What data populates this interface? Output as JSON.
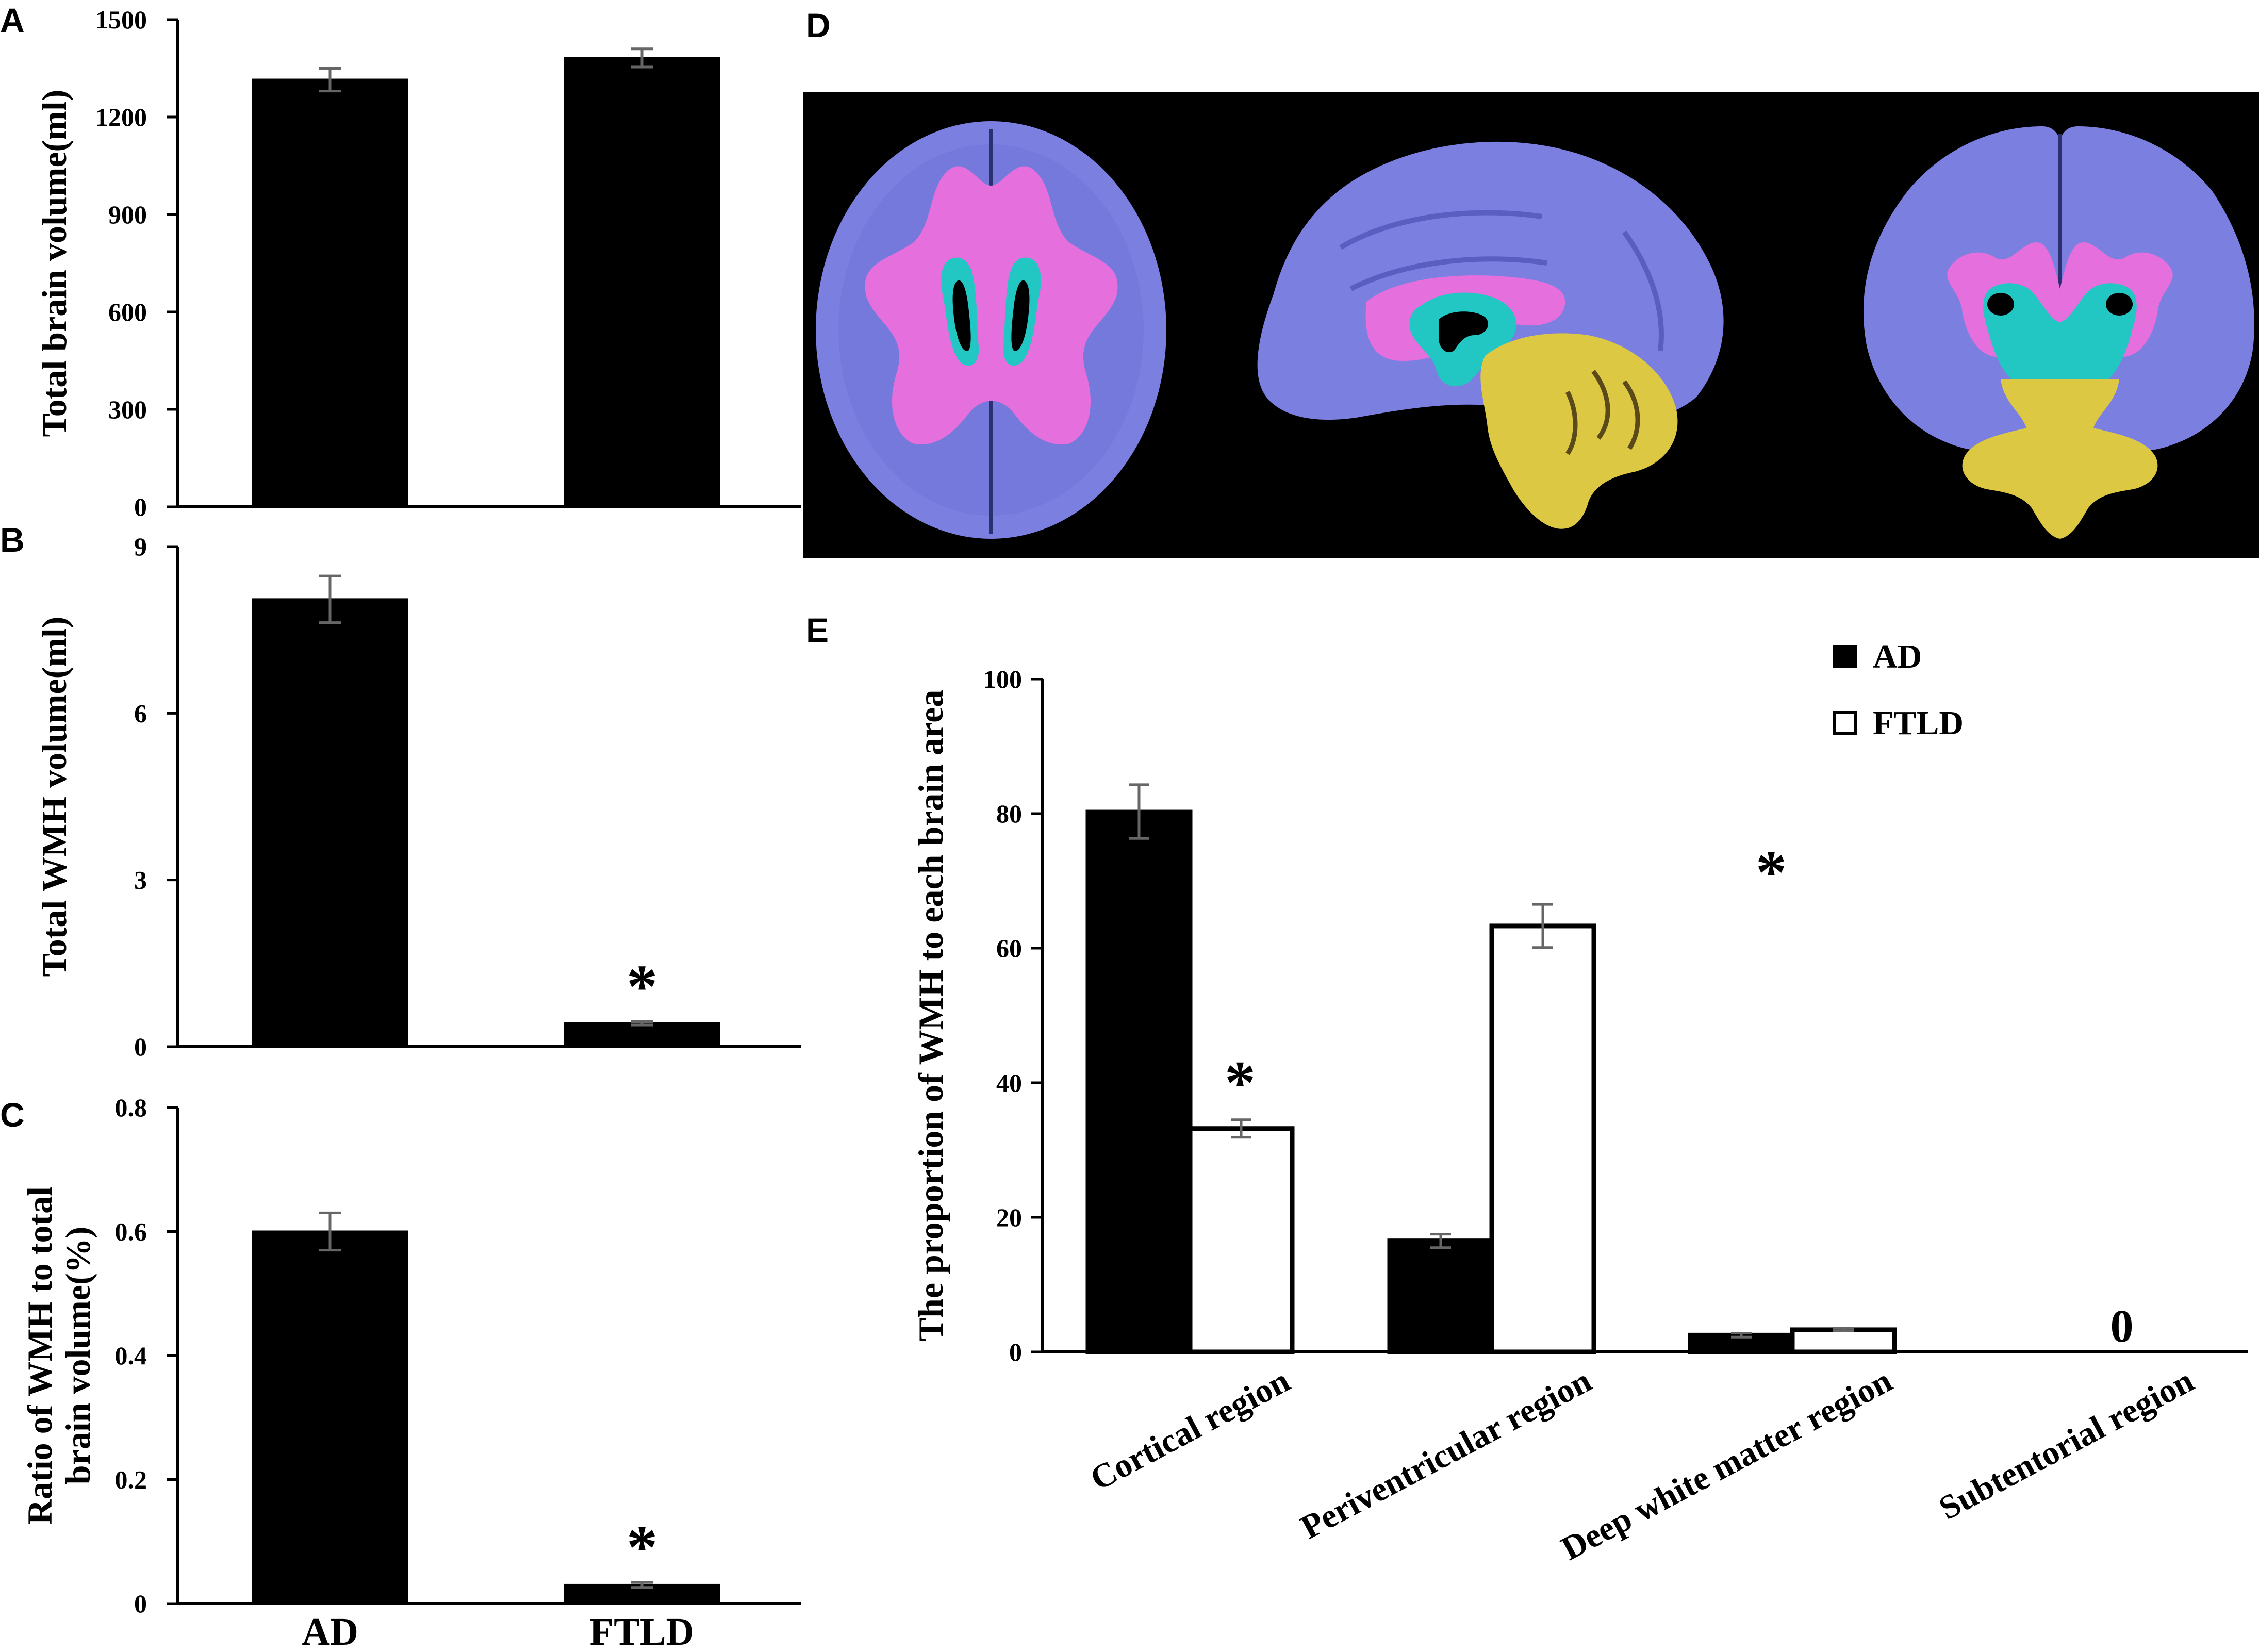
{
  "panel_labels": {
    "a": "A",
    "b": "B",
    "c": "C",
    "d": "D",
    "e": "E"
  },
  "colors": {
    "ad_fill": "#000000",
    "ftld_fill": "#ffffff",
    "error_bar": "#666666",
    "brain_background": "#000000",
    "cortex": "#7b7fe0",
    "white_matter": "#e56fdc",
    "periventricular": "#22c7c4",
    "ventricle": "#000000",
    "cerebellum_brainstem": "#dcc843"
  },
  "chart_data": [
    {
      "id": "A",
      "type": "bar",
      "categories": [
        "AD",
        "FTLD"
      ],
      "values": [
        1315,
        1382
      ],
      "errors": [
        35,
        28
      ],
      "ylabel": "Total brain volume(ml)",
      "ylim": [
        0,
        1500
      ],
      "yticks": [
        "0",
        "300",
        "600",
        "900",
        "1200",
        "1500"
      ],
      "annotations": [],
      "show_category_labels": false
    },
    {
      "id": "B",
      "type": "bar",
      "categories": [
        "AD",
        "FTLD"
      ],
      "values": [
        8.05,
        0.42
      ],
      "errors": [
        0.42,
        0.03
      ],
      "ylabel": "Total  WMH volume(ml)",
      "ylim": [
        0,
        9
      ],
      "yticks": [
        "0",
        "3",
        "6",
        "9"
      ],
      "annotations": [
        {
          "category": "FTLD",
          "text": "*"
        }
      ],
      "show_category_labels": false
    },
    {
      "id": "C",
      "type": "bar",
      "categories": [
        "AD",
        "FTLD"
      ],
      "values": [
        0.6,
        0.03
      ],
      "errors": [
        0.03,
        0.004
      ],
      "ylabel_lines": [
        "Ratio of WMH to total",
        "brain volume(%)"
      ],
      "ylim": [
        0,
        0.8
      ],
      "yticks": [
        "0",
        "0.2",
        "0.4",
        "0.6",
        "0.8"
      ],
      "annotations": [
        {
          "category": "FTLD",
          "text": "*"
        }
      ],
      "show_category_labels": true
    },
    {
      "id": "E",
      "type": "bar",
      "categories": [
        "Cortical region",
        "Periventricular region",
        "Deep white matter region",
        "Subtentorial region"
      ],
      "series": [
        {
          "name": "AD",
          "values": [
            80.3,
            16.5,
            2.5,
            0
          ],
          "errors": [
            4,
            1,
            0.3,
            0
          ]
        },
        {
          "name": "FTLD",
          "values": [
            33.2,
            63.3,
            3.3,
            0
          ],
          "errors": [
            1.3,
            3.2,
            0.2,
            0
          ]
        }
      ],
      "ylabel": "The proportion of WMH to each brain area",
      "ylim": [
        0,
        100
      ],
      "yticks": [
        "0",
        "20",
        "40",
        "60",
        "80",
        "100"
      ],
      "legend": "top-right",
      "annotations": [
        {
          "category_index": 0,
          "text": "*"
        },
        {
          "category_index": 2,
          "text": "*"
        },
        {
          "category_index": 3,
          "text": "0"
        }
      ]
    }
  ],
  "image_panel": {
    "id": "D",
    "views": [
      "axial-view",
      "sagittal-view",
      "coronal-view"
    ]
  }
}
